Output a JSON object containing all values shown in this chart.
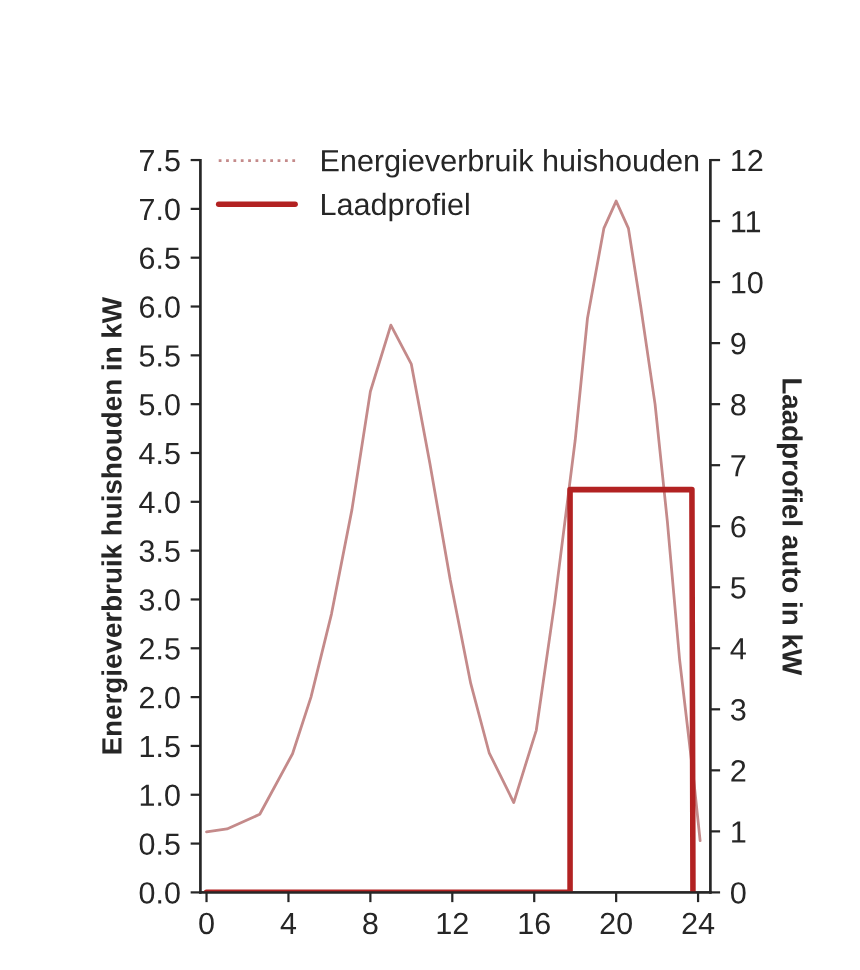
{
  "chart_data": {
    "type": "line",
    "xlabel": null,
    "ylabel": "Energieverbruik huishouden in kW",
    "y2label": "Laadprofiel auto in kW",
    "series": [
      {
        "name": "Energieverbruik huishouden",
        "color": "#c48a8a",
        "x": [
          0,
          1,
          2.6,
          4.2,
          5.1,
          6.1,
          7.1,
          8,
          9,
          10,
          10.9,
          11.9,
          12.9,
          13.8,
          15,
          16.1,
          17,
          18,
          18.6,
          19.4,
          20,
          20.6,
          21.2,
          21.9,
          22.5,
          23.1,
          23.8,
          24.1
        ],
        "values": [
          0.62,
          0.65,
          0.8,
          1.42,
          2.0,
          2.85,
          3.92,
          5.13,
          5.81,
          5.41,
          4.4,
          3.2,
          2.14,
          1.43,
          0.92,
          1.66,
          2.97,
          4.63,
          5.88,
          6.8,
          7.08,
          6.8,
          6.0,
          5.0,
          3.8,
          2.38,
          1.13,
          0.53
        ]
      },
      {
        "name": "Laadprofiel",
        "color": "#b22222",
        "axis": "y2",
        "x": [
          0,
          17.75,
          17.75,
          23.7,
          23.75
        ],
        "values": [
          0,
          0,
          6.6,
          6.6,
          0
        ]
      }
    ],
    "xlim": [
      -0.3,
      24.6
    ],
    "xticks": [
      0,
      4,
      8,
      12,
      16,
      20,
      24
    ],
    "ylim": [
      0,
      7.5
    ],
    "yticks": [
      {
        "value": 0,
        "label": "0.0"
      },
      {
        "value": 0.5,
        "label": "0.5"
      },
      {
        "value": 1,
        "label": "1.0"
      },
      {
        "value": 1.5,
        "label": "1.5"
      },
      {
        "value": 2,
        "label": "2.0"
      },
      {
        "value": 2.5,
        "label": "2.5"
      },
      {
        "value": 3,
        "label": "3.0"
      },
      {
        "value": 3.5,
        "label": "3.5"
      },
      {
        "value": 4,
        "label": "4.0"
      },
      {
        "value": 4.5,
        "label": "4.5"
      },
      {
        "value": 5,
        "label": "5.0"
      },
      {
        "value": 5.5,
        "label": "5.5"
      },
      {
        "value": 6,
        "label": "6.0"
      },
      {
        "value": 6.5,
        "label": "6.5"
      },
      {
        "value": 7,
        "label": "7.0"
      },
      {
        "value": 7.5,
        "label": "7.5"
      }
    ],
    "y2lim": [
      0,
      12
    ],
    "y2ticks": [
      0,
      1,
      2,
      3,
      4,
      5,
      6,
      7,
      8,
      9,
      10,
      11,
      12
    ],
    "legend": "top left",
    "grid": false
  }
}
